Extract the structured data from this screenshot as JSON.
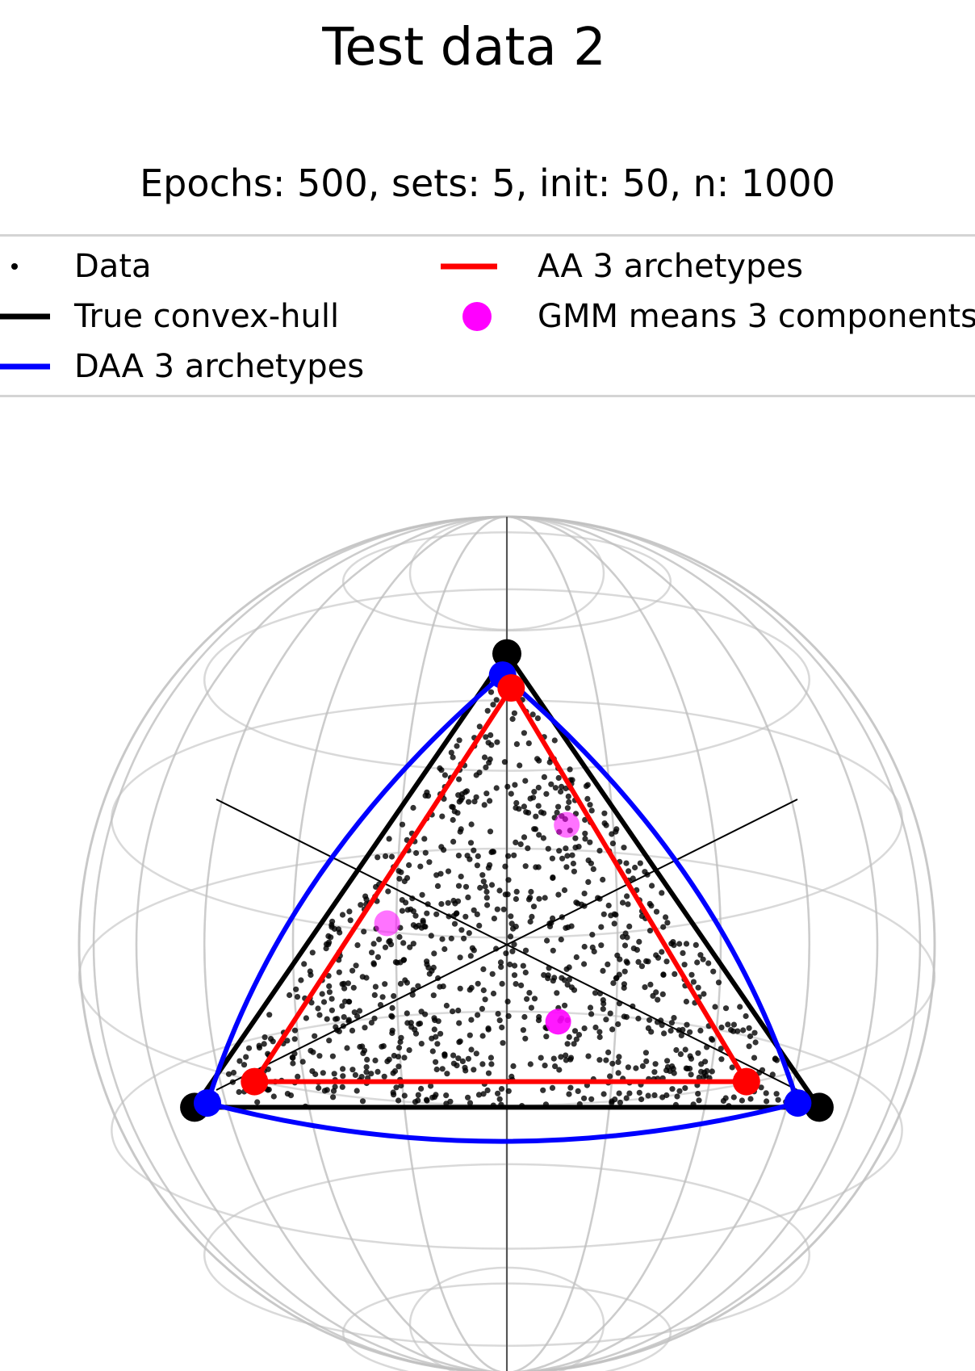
{
  "title": "Test data 2",
  "subtitle": "Epochs: 500, sets: 5, init: 50, n: 1000",
  "legend": {
    "placement": "top",
    "items": [
      {
        "key": "data",
        "label": "Data",
        "handle": "dot",
        "color": "#000000"
      },
      {
        "key": "hull",
        "label": "True convex-hull",
        "handle": "line",
        "color": "#000000"
      },
      {
        "key": "daa",
        "label": "DAA 3 archetypes",
        "handle": "line",
        "color": "#0000ff"
      },
      {
        "key": "aa",
        "label": "AA 3 archetypes",
        "handle": "line",
        "color": "#ff0000"
      },
      {
        "key": "gmm",
        "label": "GMM means 3 components",
        "handle": "dot",
        "color": "#ff00ff"
      }
    ]
  },
  "chart_data": {
    "type": "scatter",
    "projection": "3d-sphere-wireframe",
    "axes": "hidden",
    "grid": false,
    "colors": {
      "data": "#000000",
      "hull": "#000000",
      "daa": "#0000ff",
      "aa": "#ff0000",
      "gmm": "#ff00ff",
      "wireframe": "#bfbfbf"
    },
    "true_hull_vertices": [
      [
        0.0,
        0.68
      ],
      [
        -0.73,
        -0.38
      ],
      [
        0.73,
        -0.38
      ]
    ],
    "daa_archetypes": [
      [
        -0.01,
        0.63
      ],
      [
        -0.7,
        -0.37
      ],
      [
        0.68,
        -0.37
      ]
    ],
    "aa_archetypes": [
      [
        0.01,
        0.6
      ],
      [
        -0.59,
        -0.32
      ],
      [
        0.56,
        -0.32
      ]
    ],
    "gmm_means": [
      [
        0.14,
        0.28
      ],
      [
        -0.28,
        0.05
      ],
      [
        0.12,
        -0.18
      ]
    ],
    "n_points": 1000
  }
}
